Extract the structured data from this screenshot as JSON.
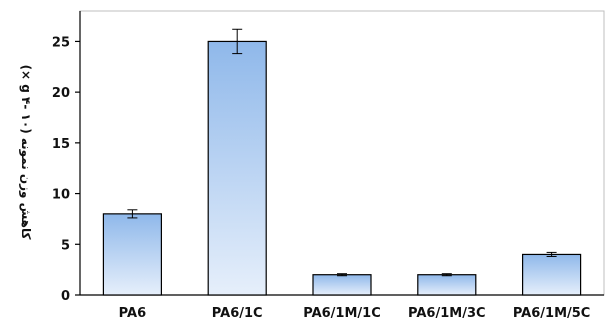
{
  "chart_data": {
    "type": "bar",
    "title": "",
    "xlabel": "",
    "ylabel": "کاهش وزن نمونه (g ۴- ۱۰ ×)",
    "categories": [
      "PA6",
      "PA6/1C",
      "PA6/1M/1C",
      "PA6/1M/3C",
      "PA6/1M/5C"
    ],
    "values": [
      8,
      25,
      2,
      2,
      4
    ],
    "error": [
      0.4,
      1.2,
      0.1,
      0.1,
      0.2
    ],
    "ylim": [
      0,
      28
    ],
    "yticks": [
      0,
      5,
      10,
      15,
      20,
      25
    ],
    "grid": false,
    "legend": "none",
    "colors": {
      "bar_top": "#8fb8ea",
      "bar_bottom": "#e6effb",
      "bar_edge": "#000000"
    }
  }
}
